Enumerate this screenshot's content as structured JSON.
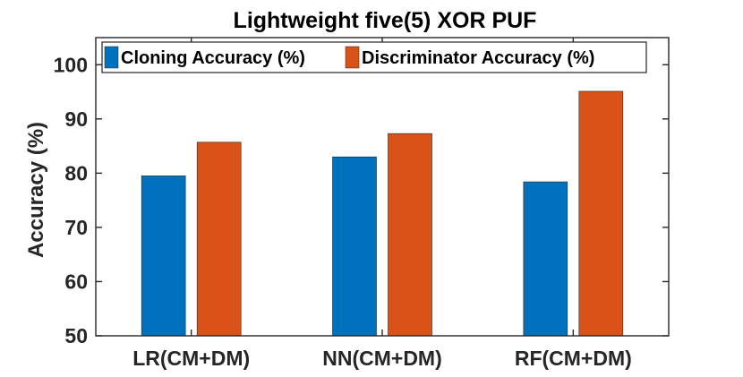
{
  "chart_data": {
    "type": "bar",
    "title": "Lightweight five(5) XOR PUF",
    "xlabel": "",
    "ylabel": "Accuracy (%)",
    "categories": [
      "LR(CM+DM)",
      "NN(CM+DM)",
      "RF(CM+DM)"
    ],
    "series": [
      {
        "name": "Cloning Accuracy (%)",
        "color": "#0072BD",
        "values": [
          79.5,
          83.0,
          78.4
        ]
      },
      {
        "name": "Discriminator Accuracy (%)",
        "color": "#D95319",
        "values": [
          85.7,
          87.3,
          95.1
        ]
      }
    ],
    "ylim": [
      50,
      105
    ],
    "yticks": [
      50,
      60,
      70,
      80,
      90,
      100
    ],
    "grid": false,
    "legend_position": "top"
  }
}
